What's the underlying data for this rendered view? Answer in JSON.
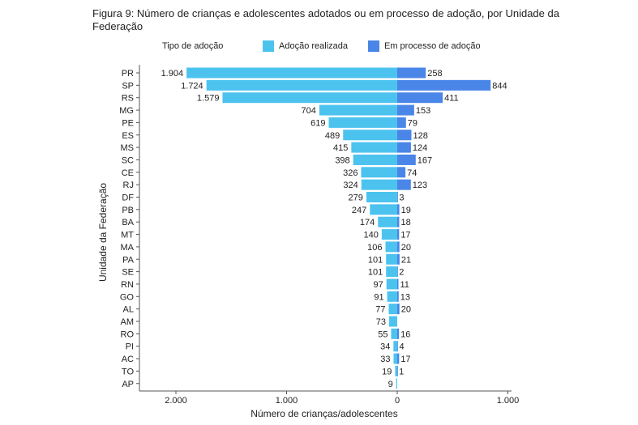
{
  "figure_title": "Figura 9: Número de crianças e adolescentes adotados ou em processo de adoção, por Unidade da Federação",
  "legend": {
    "title": "Tipo de adoção",
    "items": [
      {
        "label": "Adoção realizada",
        "color": "#4cc3ef"
      },
      {
        "label": "Em processo de adoção",
        "color": "#4a86e8"
      }
    ]
  },
  "chart_data": {
    "type": "bar",
    "orientation": "horizontal-diverging",
    "title": "Figura 9: Número de crianças e adolescentes adotados ou em processo de adoção, por Unidade da Federação",
    "xlabel": "Número de crianças/adolescentes",
    "ylabel": "Unidade da Federação",
    "xlim": [
      -2400,
      1000
    ],
    "xticks": [
      -2000,
      -1000,
      0,
      1000
    ],
    "xtick_labels": [
      "2.000",
      "1.000",
      "0",
      "1.000"
    ],
    "categories": [
      "PR",
      "SP",
      "RS",
      "MG",
      "PE",
      "ES",
      "MS",
      "SC",
      "CE",
      "RJ",
      "DF",
      "PB",
      "BA",
      "MT",
      "MA",
      "PA",
      "SE",
      "RN",
      "GO",
      "AL",
      "AM",
      "RO",
      "PI",
      "AC",
      "TO",
      "AP"
    ],
    "series": [
      {
        "name": "Adoção realizada",
        "color": "#4cc3ef",
        "side": "left",
        "values": [
          1904,
          1724,
          1579,
          704,
          619,
          489,
          415,
          398,
          326,
          324,
          279,
          247,
          174,
          140,
          106,
          101,
          101,
          97,
          91,
          77,
          73,
          55,
          34,
          33,
          19,
          9
        ],
        "labels": [
          "1.904",
          "1.724",
          "1.579",
          "704",
          "619",
          "489",
          "415",
          "398",
          "326",
          "324",
          "279",
          "247",
          "174",
          "140",
          "106",
          "101",
          "101",
          "97",
          "91",
          "77",
          "73",
          "55",
          "34",
          "33",
          "19",
          "9"
        ]
      },
      {
        "name": "Em processo de adoção",
        "color": "#4a86e8",
        "side": "right",
        "values": [
          258,
          844,
          411,
          153,
          79,
          128,
          124,
          167,
          74,
          123,
          3,
          19,
          18,
          17,
          20,
          21,
          2,
          11,
          13,
          20,
          null,
          16,
          4,
          17,
          1,
          null
        ],
        "labels": [
          "258",
          "844",
          "411",
          "153",
          "79",
          "128",
          "124",
          "167",
          "74",
          "123",
          "3",
          "19",
          "18",
          "17",
          "20",
          "21",
          "2",
          "11",
          "13",
          "20",
          "",
          "16",
          "4",
          "17",
          "1",
          ""
        ]
      }
    ],
    "grid": false,
    "legend_position": "top"
  }
}
